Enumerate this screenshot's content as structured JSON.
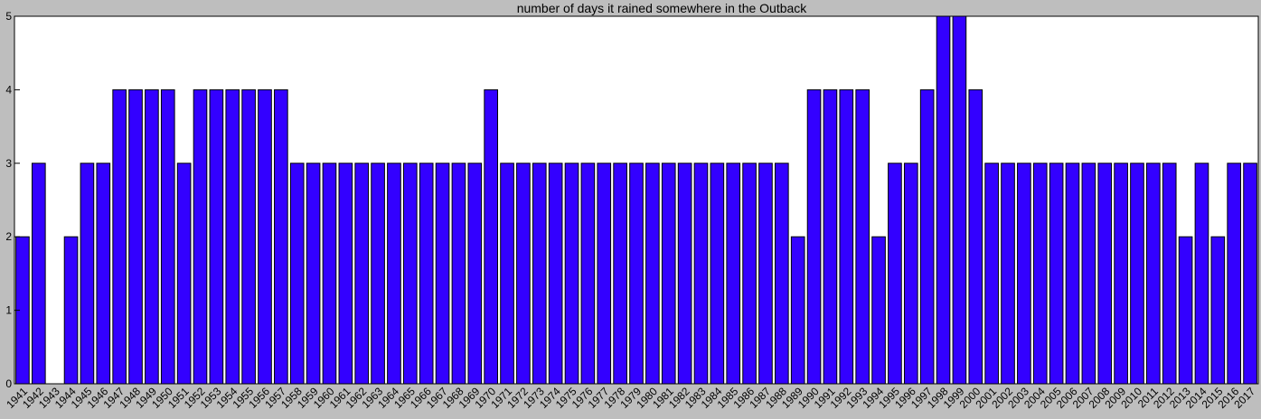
{
  "chart_data": {
    "type": "bar",
    "title": "number of days it rained somewhere in the Outback",
    "xlabel": "",
    "ylabel": "",
    "ylim": [
      0,
      5
    ],
    "yticks": [
      0,
      1,
      2,
      3,
      4,
      5
    ],
    "grid": false,
    "bar_color": "#3300ff",
    "categories": [
      "1941",
      "1942",
      "1943",
      "1944",
      "1945",
      "1946",
      "1947",
      "1948",
      "1949",
      "1950",
      "1951",
      "1952",
      "1953",
      "1954",
      "1955",
      "1956",
      "1957",
      "1958",
      "1959",
      "1960",
      "1961",
      "1962",
      "1963",
      "1964",
      "1965",
      "1966",
      "1967",
      "1968",
      "1969",
      "1970",
      "1971",
      "1972",
      "1973",
      "1974",
      "1975",
      "1976",
      "1977",
      "1978",
      "1979",
      "1980",
      "1981",
      "1982",
      "1983",
      "1984",
      "1985",
      "1986",
      "1987",
      "1988",
      "1989",
      "1990",
      "1991",
      "1992",
      "1993",
      "1994",
      "1995",
      "1996",
      "1997",
      "1998",
      "1999",
      "2000",
      "2001",
      "2002",
      "2003",
      "2004",
      "2005",
      "2006",
      "2007",
      "2008",
      "2009",
      "2010",
      "2011",
      "2012",
      "2013",
      "2014",
      "2015",
      "2016",
      "2017"
    ],
    "values": [
      2,
      3,
      0,
      2,
      3,
      3,
      4,
      4,
      4,
      4,
      3,
      4,
      4,
      4,
      4,
      4,
      4,
      3,
      3,
      3,
      3,
      3,
      3,
      3,
      3,
      3,
      3,
      3,
      3,
      4,
      3,
      3,
      3,
      3,
      3,
      3,
      3,
      3,
      3,
      3,
      3,
      3,
      3,
      3,
      3,
      3,
      3,
      3,
      2,
      4,
      4,
      4,
      4,
      2,
      3,
      3,
      4,
      5,
      5,
      4,
      3,
      3,
      3,
      3,
      3,
      3,
      3,
      3,
      3,
      3,
      3,
      3,
      2,
      3,
      2,
      3,
      3
    ]
  }
}
